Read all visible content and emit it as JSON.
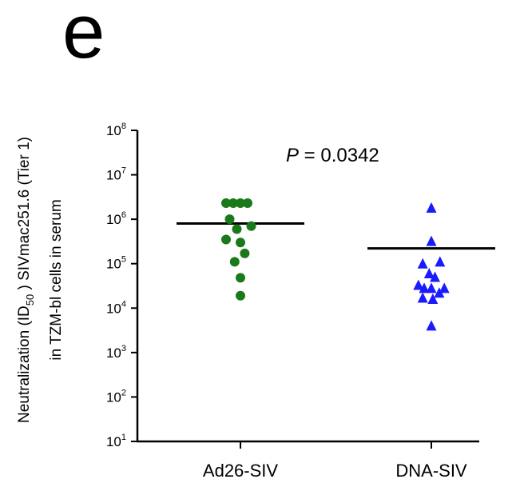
{
  "panel_letter": "e",
  "chart_data": {
    "type": "scatter",
    "yscale": "log",
    "ylim": [
      10,
      100000000
    ],
    "yticks": [
      {
        "value": 10,
        "base": "10",
        "exp": "1"
      },
      {
        "value": 100,
        "base": "10",
        "exp": "2"
      },
      {
        "value": 1000,
        "base": "10",
        "exp": "3"
      },
      {
        "value": 10000,
        "base": "10",
        "exp": "4"
      },
      {
        "value": 100000,
        "base": "10",
        "exp": "5"
      },
      {
        "value": 1000000,
        "base": "10",
        "exp": "6"
      },
      {
        "value": 10000000,
        "base": "10",
        "exp": "7"
      },
      {
        "value": 100000000,
        "base": "10",
        "exp": "8"
      }
    ],
    "ylabel_line1_parts": [
      "Neutralization (ID",
      "50",
      " ) SIVmac251.6 (Tier 1)"
    ],
    "ylabel_line2": "in TZM-bl cells in serum",
    "categories": [
      "Ad26-SIV",
      "DNA-SIV"
    ],
    "annotation": {
      "p_italic": "P",
      "p_rest": " = 0.0342"
    },
    "series": [
      {
        "category": "Ad26-SIV",
        "marker": "circle",
        "color": "#1a7a1a",
        "mean": 800000,
        "points": [
          {
            "offset": -2,
            "value": 2300000
          },
          {
            "offset": -1,
            "value": 2300000
          },
          {
            "offset": 0,
            "value": 2300000
          },
          {
            "offset": 1,
            "value": 2300000
          },
          {
            "offset": -1.5,
            "value": 1000000
          },
          {
            "offset": 1.5,
            "value": 700000
          },
          {
            "offset": -0.5,
            "value": 600000
          },
          {
            "offset": -2,
            "value": 350000
          },
          {
            "offset": 0,
            "value": 300000
          },
          {
            "offset": 0.6,
            "value": 170000
          },
          {
            "offset": -0.8,
            "value": 110000
          },
          {
            "offset": 0,
            "value": 48000
          },
          {
            "offset": 0,
            "value": 19000
          }
        ]
      },
      {
        "category": "DNA-SIV",
        "marker": "triangle",
        "color": "#1a1aff",
        "mean": 220000,
        "points": [
          {
            "offset": 0,
            "value": 1800000
          },
          {
            "offset": 0,
            "value": 320000
          },
          {
            "offset": -1.2,
            "value": 100000
          },
          {
            "offset": 1.2,
            "value": 110000
          },
          {
            "offset": -0.3,
            "value": 60000
          },
          {
            "offset": 0.5,
            "value": 50000
          },
          {
            "offset": -1.8,
            "value": 33000
          },
          {
            "offset": -1,
            "value": 28000
          },
          {
            "offset": 0,
            "value": 28000
          },
          {
            "offset": 1.8,
            "value": 28000
          },
          {
            "offset": 1.1,
            "value": 22000
          },
          {
            "offset": -1.2,
            "value": 17000
          },
          {
            "offset": 0.2,
            "value": 16000
          },
          {
            "offset": 0,
            "value": 4000
          }
        ]
      }
    ]
  }
}
